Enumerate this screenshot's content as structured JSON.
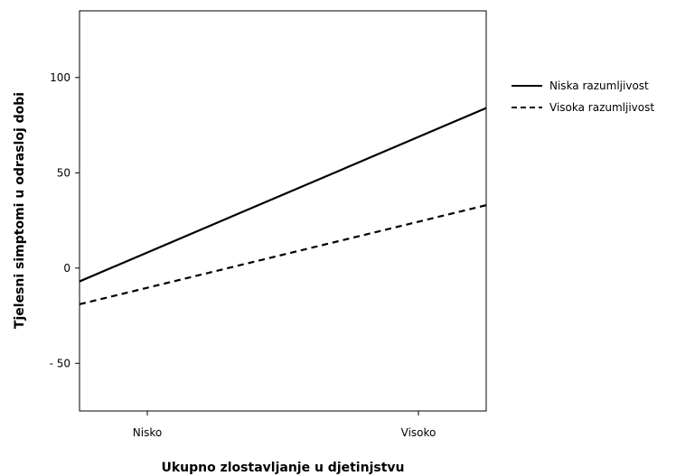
{
  "chart_data": {
    "type": "line",
    "title": "",
    "xlabel": "Ukupno zlostavljanje u djetinjstvu",
    "ylabel": "Tjelesni simptomi u odrasloj dobi",
    "categories": [
      "Nisko",
      "Visoko"
    ],
    "x_tick_labels": [
      "Nisko",
      "Visoko"
    ],
    "y_ticks": [
      -50,
      0,
      50,
      100
    ],
    "y_tick_labels": [
      "- 50",
      "0",
      "50",
      "100"
    ],
    "xlim": [
      -0.25,
      1.25
    ],
    "ylim": [
      -75,
      135
    ],
    "grid": false,
    "legend_position": "right",
    "series": [
      {
        "name": "Niska razumljivost",
        "style": "solid",
        "color": "#000000",
        "x": [
          -0.25,
          1.25
        ],
        "y": [
          -7,
          84
        ]
      },
      {
        "name": "Visoka razumljivost",
        "style": "dashed",
        "color": "#000000",
        "x": [
          -0.25,
          1.25
        ],
        "y": [
          -19,
          33
        ]
      }
    ]
  }
}
